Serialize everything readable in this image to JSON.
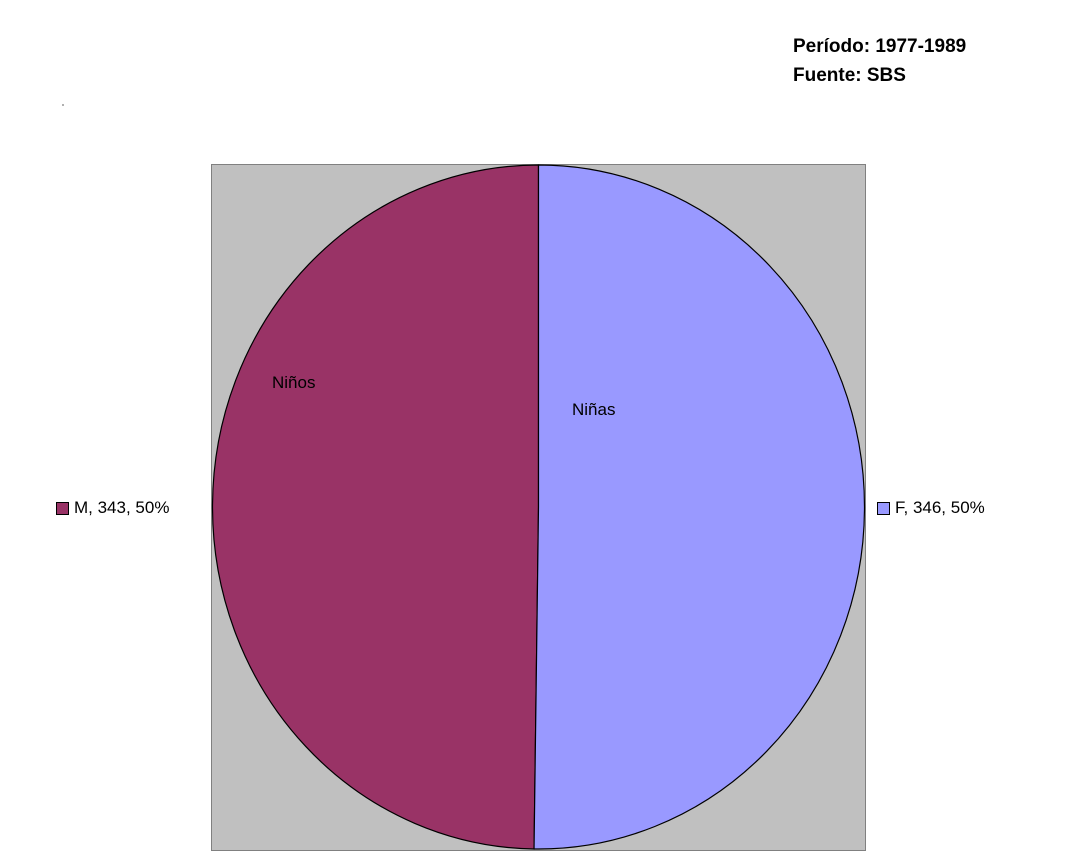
{
  "header": {
    "period": "Período: 1977-1989",
    "source": "Fuente: SBS"
  },
  "chart_data": {
    "type": "pie",
    "title": "",
    "slices": [
      {
        "key": "M",
        "slice_label": "Niños",
        "legend_label": "M, 343, 50%",
        "value": 343,
        "percent": 50,
        "color": "#993366"
      },
      {
        "key": "F",
        "slice_label": "Niñas",
        "legend_label": "F, 346, 50%",
        "value": 346,
        "percent": 50,
        "color": "#9999ff"
      }
    ],
    "background_color": "#c0c0c0"
  }
}
